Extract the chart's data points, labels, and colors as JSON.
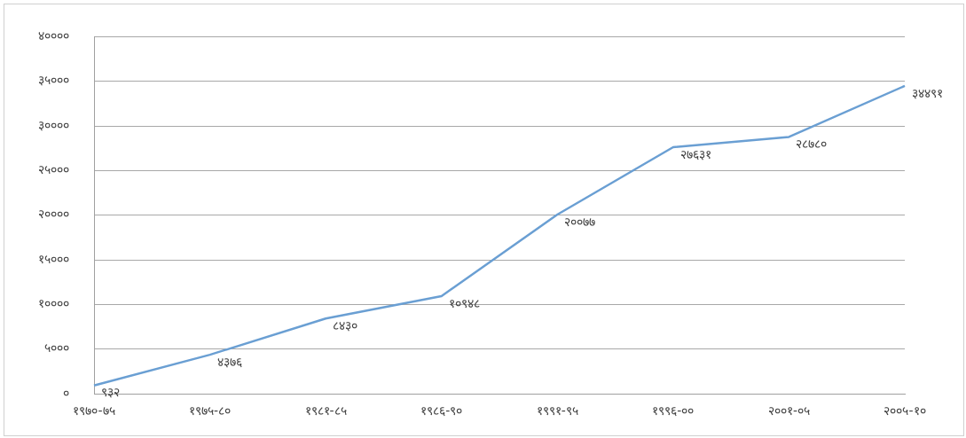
{
  "chart_data": {
    "type": "line",
    "categories": [
      "१९७०-७५",
      "१९७५-८०",
      "१९८१-८५",
      "१९८६-९०",
      "१९९१-९५",
      "१९९६-००",
      "२००१-०५",
      "२००५-१०"
    ],
    "series": [
      {
        "color": "#6a9fd3",
        "values": [
          932,
          4376,
          8430,
          10948,
          20077,
          27631,
          28780,
          34491
        ],
        "value_labels": [
          "९३२",
          "४३७६",
          "८४३०",
          "१०९४८",
          "२००७७",
          "२७६३१",
          "२८७८०",
          "३४४९१"
        ]
      }
    ],
    "ylim": [
      0,
      40000
    ],
    "yticks": [
      {
        "value": 0,
        "label": "०"
      },
      {
        "value": 5000,
        "label": "५०००"
      },
      {
        "value": 10000,
        "label": "१००००"
      },
      {
        "value": 15000,
        "label": "१५०००"
      },
      {
        "value": 20000,
        "label": "२००००"
      },
      {
        "value": 25000,
        "label": "२५०००"
      },
      {
        "value": 30000,
        "label": "३००००"
      },
      {
        "value": 35000,
        "label": "३५०००"
      },
      {
        "value": 40000,
        "label": "४००००"
      }
    ],
    "grid": "y",
    "legend": false,
    "marker": "none",
    "line_style": "solid"
  }
}
